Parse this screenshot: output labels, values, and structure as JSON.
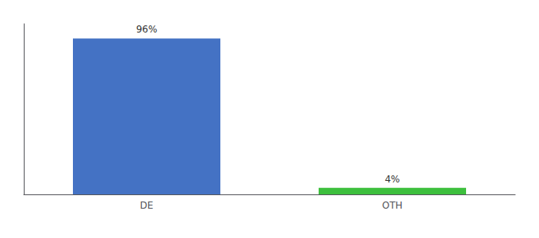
{
  "chart_data": {
    "type": "bar",
    "categories": [
      "DE",
      "OTH"
    ],
    "values": [
      96,
      4
    ],
    "value_labels": [
      "96%",
      "4%"
    ],
    "colors": [
      "#4472c4",
      "#3dbf3d"
    ],
    "ylim": [
      0,
      105
    ],
    "data_labels": true,
    "tick_labels": "x",
    "grid": false
  }
}
